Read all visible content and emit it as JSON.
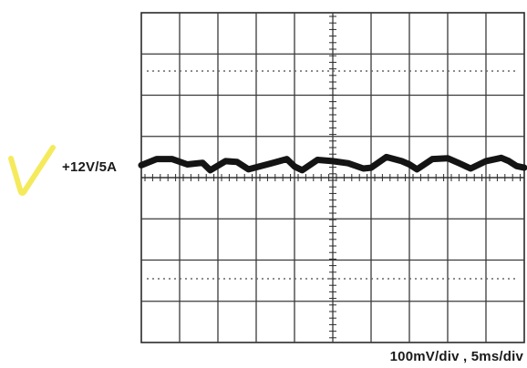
{
  "chart_data": {
    "type": "line",
    "title": "",
    "trace_label": "+12V/5A",
    "scale_label": "100mV/div ,  5ms/div",
    "vertical_scale_mv_per_div": 100,
    "horizontal_scale_ms_per_div": 5,
    "grid": true,
    "grid_divisions": {
      "x": 10,
      "y": 8
    },
    "xlim_ms": [
      0,
      50
    ],
    "ylim_mv": [
      -400,
      400
    ],
    "series": [
      {
        "x_ms": [
          0,
          2,
          4,
          6,
          8,
          9,
          11,
          12.5,
          14,
          17,
          19,
          20,
          21,
          23,
          25,
          27,
          29,
          30,
          32,
          34,
          35,
          36,
          38,
          40,
          41.5,
          43,
          45,
          47,
          48,
          49,
          50
        ],
        "y_mv": [
          30,
          45,
          45,
          32,
          36,
          18,
          40,
          38,
          20,
          35,
          45,
          27,
          18,
          43,
          40,
          35,
          22,
          24,
          50,
          40,
          32,
          20,
          45,
          47,
          35,
          22,
          40,
          48,
          40,
          28,
          24
        ]
      }
    ],
    "trace_color": "#141414"
  },
  "annotation": {
    "mark_color": "#f5ea5c"
  }
}
